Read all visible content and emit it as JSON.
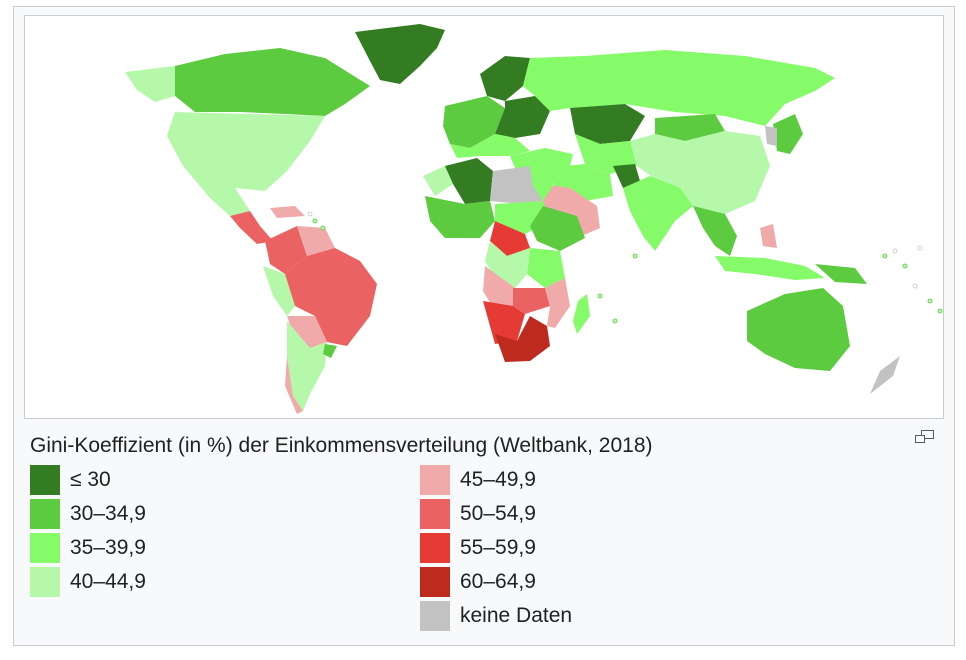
{
  "caption": "Gini-Koeffizient (in %) der Einkommensverteilung (Weltbank, 2018)",
  "magnify_icon": "magnify-clip-icon",
  "colors": {
    "ocean": "#ffffff",
    "le30": "#347c22",
    "r30_34": "#5ccb3f",
    "r35_39": "#86fb6a",
    "r40_44": "#b5f8aa",
    "r45_49": "#f1aaaa",
    "r50_54": "#eb6262",
    "r55_59": "#e63b35",
    "r60_64": "#bf2a1f",
    "nodata": "#c2c2c2"
  },
  "legend": {
    "left": [
      {
        "label": "≤ 30",
        "color": "#347c22"
      },
      {
        "label": "30–34,9",
        "color": "#5ccb3f"
      },
      {
        "label": "35–39,9",
        "color": "#86fb6a"
      },
      {
        "label": "40–44,9",
        "color": "#b5f8aa"
      }
    ],
    "right": [
      {
        "label": "45–49,9",
        "color": "#f1aaaa"
      },
      {
        "label": "50–54,9",
        "color": "#eb6262"
      },
      {
        "label": "55–59,9",
        "color": "#e63b35"
      },
      {
        "label": "60–64,9",
        "color": "#bf2a1f"
      },
      {
        "label": "keine Daten",
        "color": "#c2c2c2"
      }
    ]
  }
}
